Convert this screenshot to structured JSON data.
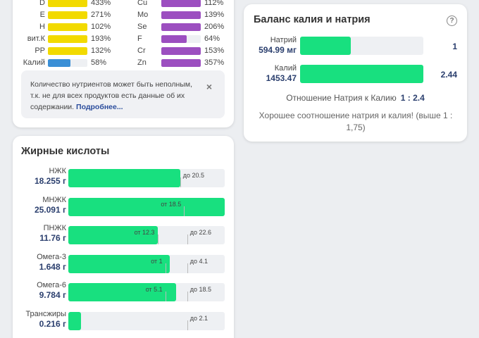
{
  "vitamins": {
    "left": [
      {
        "label": "D",
        "pct": "433%",
        "fill": 1.0,
        "color": "#f2da00"
      },
      {
        "label": "E",
        "pct": "271%",
        "fill": 1.0,
        "color": "#f2da00"
      },
      {
        "label": "H",
        "pct": "102%",
        "fill": 1.0,
        "color": "#f2da00"
      },
      {
        "label": "вит.К",
        "pct": "193%",
        "fill": 1.0,
        "color": "#f2da00"
      },
      {
        "label": "PP",
        "pct": "132%",
        "fill": 1.0,
        "color": "#f2da00"
      },
      {
        "label": "Калий",
        "pct": "58%",
        "fill": 0.58,
        "color": "#3a8fd6"
      }
    ],
    "right": [
      {
        "label": "Cu",
        "pct": "112%",
        "fill": 1.0,
        "color": "#9c4fc0"
      },
      {
        "label": "Mo",
        "pct": "139%",
        "fill": 1.0,
        "color": "#9c4fc0"
      },
      {
        "label": "Se",
        "pct": "206%",
        "fill": 1.0,
        "color": "#9c4fc0"
      },
      {
        "label": "F",
        "pct": "64%",
        "fill": 0.64,
        "color": "#9c4fc0"
      },
      {
        "label": "Cr",
        "pct": "153%",
        "fill": 1.0,
        "color": "#9c4fc0"
      },
      {
        "label": "Zn",
        "pct": "357%",
        "fill": 1.0,
        "color": "#9c4fc0"
      }
    ],
    "note": {
      "text": "Количество нутриентов может быть неполным, т.к. не для всех продуктов есть данные об их содержании. ",
      "more": "Подробнее...",
      "close": "×"
    }
  },
  "fats": {
    "title": "Жирные кислоты",
    "rows": [
      {
        "name": "НЖК",
        "value": "18.255 г",
        "fill": 0.715,
        "markers": [
          {
            "text": "до 20.5",
            "at": 0.715,
            "side": "right"
          }
        ]
      },
      {
        "name": "МНЖК",
        "value": "25.091 г",
        "fill": 1.0,
        "markers": [
          {
            "text": "от 18.5",
            "at": 0.74,
            "side": "left"
          }
        ]
      },
      {
        "name": "ПНЖК",
        "value": "11.76 г",
        "fill": 0.57,
        "markers": [
          {
            "text": "от 12.3",
            "at": 0.57,
            "side": "left"
          },
          {
            "text": "до 22.6",
            "at": 0.76,
            "side": "right"
          }
        ]
      },
      {
        "name": "Омега-3",
        "value": "1.648 г",
        "fill": 0.65,
        "markers": [
          {
            "text": "от 1",
            "at": 0.62,
            "side": "left"
          },
          {
            "text": "до 4.1",
            "at": 0.76,
            "side": "right"
          }
        ]
      },
      {
        "name": "Омега-6",
        "value": "9.784 г",
        "fill": 0.69,
        "markers": [
          {
            "text": "от 5.1",
            "at": 0.62,
            "side": "left"
          },
          {
            "text": "до 18.5",
            "at": 0.76,
            "side": "right"
          }
        ]
      },
      {
        "name": "Трансжиры",
        "value": "0.216 г",
        "fill": 0.08,
        "markers": [
          {
            "text": "до 2.1",
            "at": 0.76,
            "side": "right"
          }
        ]
      }
    ]
  },
  "kna": {
    "title": "Баланс калия и натрия",
    "help": "?",
    "rows": [
      {
        "name": "Натрий",
        "value": "594.99 мг",
        "fill": 0.41,
        "ratio": "1"
      },
      {
        "name": "Калий",
        "value": "1453.47",
        "fill": 1.0,
        "ratio": "2.44"
      }
    ],
    "ratio_label": "Отношение Натрия к Калию",
    "ratio_value": "1 : 2.4",
    "good": "Хорошее соотношение натрия и калия! (выше 1 : 1,75)"
  }
}
